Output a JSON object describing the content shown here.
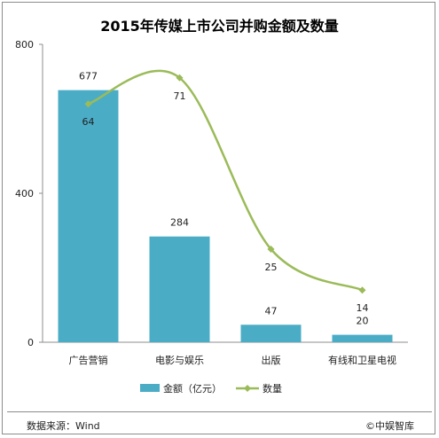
{
  "chart_data": {
    "type": "bar",
    "title": "2015年传媒上市公司并购金额及数量",
    "categories": [
      "广告营销",
      "电影与娱乐",
      "出版",
      "有线和卫星电视"
    ],
    "series": [
      {
        "name": "金额（亿元）",
        "type": "bar",
        "values": [
          677,
          284,
          47,
          20
        ],
        "color": "#4bacc6"
      },
      {
        "name": "数量",
        "type": "line",
        "values": [
          64,
          71,
          25,
          14
        ],
        "color": "#9bbb59"
      }
    ],
    "ylim": [
      0,
      800
    ],
    "yticks": [
      "0",
      "400",
      "800"
    ],
    "legend_position": "bottom",
    "grid": false
  },
  "footer": {
    "source": "数据来源：Wind",
    "brand": "©中娱智库"
  }
}
